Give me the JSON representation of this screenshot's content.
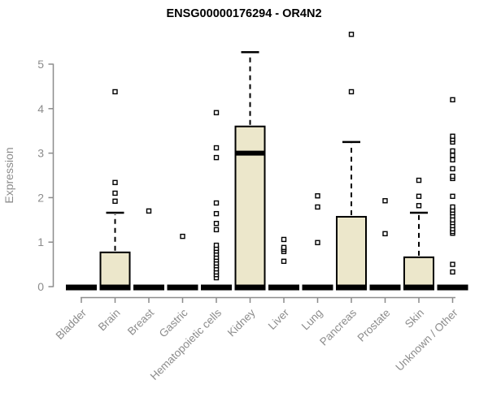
{
  "chart_data": {
    "type": "boxplot",
    "title": "ENSG00000176294 - OR4N2",
    "ylabel": "Expression",
    "xlabel": "",
    "ylim": [
      0,
      5
    ],
    "yticks": [
      0,
      1,
      2,
      3,
      4,
      5
    ],
    "grid": false,
    "legend": false,
    "categories": [
      "Bladder",
      "Brain",
      "Breast",
      "Gastric",
      "Hematopoietic cells",
      "Kidney",
      "Liver",
      "Lung",
      "Pancreas",
      "Prostate",
      "Skin",
      "Unknown / Other"
    ],
    "boxes": [
      {
        "category": "Bladder",
        "q1": 0,
        "median": 0,
        "q3": 0,
        "whisker_low": 0,
        "whisker_high": 0,
        "outliers": []
      },
      {
        "category": "Brain",
        "q1": 0,
        "median": 0,
        "q3": 0.77,
        "whisker_low": 0,
        "whisker_high": 1.66,
        "outliers": [
          1.92,
          2.1,
          2.34,
          4.38
        ]
      },
      {
        "category": "Breast",
        "q1": 0,
        "median": 0,
        "q3": 0,
        "whisker_low": 0,
        "whisker_high": 0,
        "outliers": [
          1.7
        ]
      },
      {
        "category": "Gastric",
        "q1": 0,
        "median": 0,
        "q3": 0,
        "whisker_low": 0,
        "whisker_high": 0,
        "outliers": [
          1.13
        ]
      },
      {
        "category": "Hematopoietic cells",
        "q1": 0,
        "median": 0,
        "q3": 0,
        "whisker_low": 0,
        "whisker_high": 0,
        "outliers": [
          0.2,
          0.27,
          0.33,
          0.4,
          0.47,
          0.53,
          0.6,
          0.66,
          0.73,
          0.8,
          0.86,
          0.93,
          1.28,
          1.42,
          1.64,
          1.88,
          2.9,
          3.12,
          3.91
        ]
      },
      {
        "category": "Kidney",
        "q1": 0,
        "median": 3.0,
        "q3": 3.6,
        "whisker_low": 0,
        "whisker_high": 5.27,
        "outliers": []
      },
      {
        "category": "Liver",
        "q1": 0,
        "median": 0,
        "q3": 0,
        "whisker_low": 0,
        "whisker_high": 0,
        "outliers": [
          0.57,
          0.79,
          0.84,
          0.88,
          1.06
        ]
      },
      {
        "category": "Lung",
        "q1": 0,
        "median": 0,
        "q3": 0,
        "whisker_low": 0,
        "whisker_high": 0,
        "outliers": [
          0.99,
          1.79,
          2.04
        ]
      },
      {
        "category": "Pancreas",
        "q1": 0,
        "median": 0,
        "q3": 1.57,
        "whisker_low": 0,
        "whisker_high": 3.25,
        "outliers": [
          4.38,
          5.67
        ]
      },
      {
        "category": "Prostate",
        "q1": 0,
        "median": 0,
        "q3": 0,
        "whisker_low": 0,
        "whisker_high": 0,
        "outliers": [
          1.19,
          1.93
        ]
      },
      {
        "category": "Skin",
        "q1": 0,
        "median": 0,
        "q3": 0.66,
        "whisker_low": 0,
        "whisker_high": 1.66,
        "outliers": [
          1.82,
          2.03,
          2.39
        ]
      },
      {
        "category": "Unknown / Other",
        "q1": 0,
        "median": 0,
        "q3": 0,
        "whisker_low": 0,
        "whisker_high": 0,
        "outliers": [
          0.33,
          0.5,
          1.2,
          1.24,
          1.3,
          1.37,
          1.44,
          1.5,
          1.59,
          1.66,
          1.72,
          1.79,
          2.03,
          2.43,
          2.48,
          2.65,
          2.85,
          2.95,
          3.05,
          3.25,
          3.31,
          3.38,
          4.2
        ]
      }
    ]
  },
  "colors": {
    "box_fill": "#ECE7CB",
    "box_border": "#000000",
    "axis": "#8C8C8C",
    "tick_label": "#8C8C8C",
    "title": "#000000",
    "outlier_fill": "#FFFFFF",
    "background": "#FFFFFF"
  }
}
